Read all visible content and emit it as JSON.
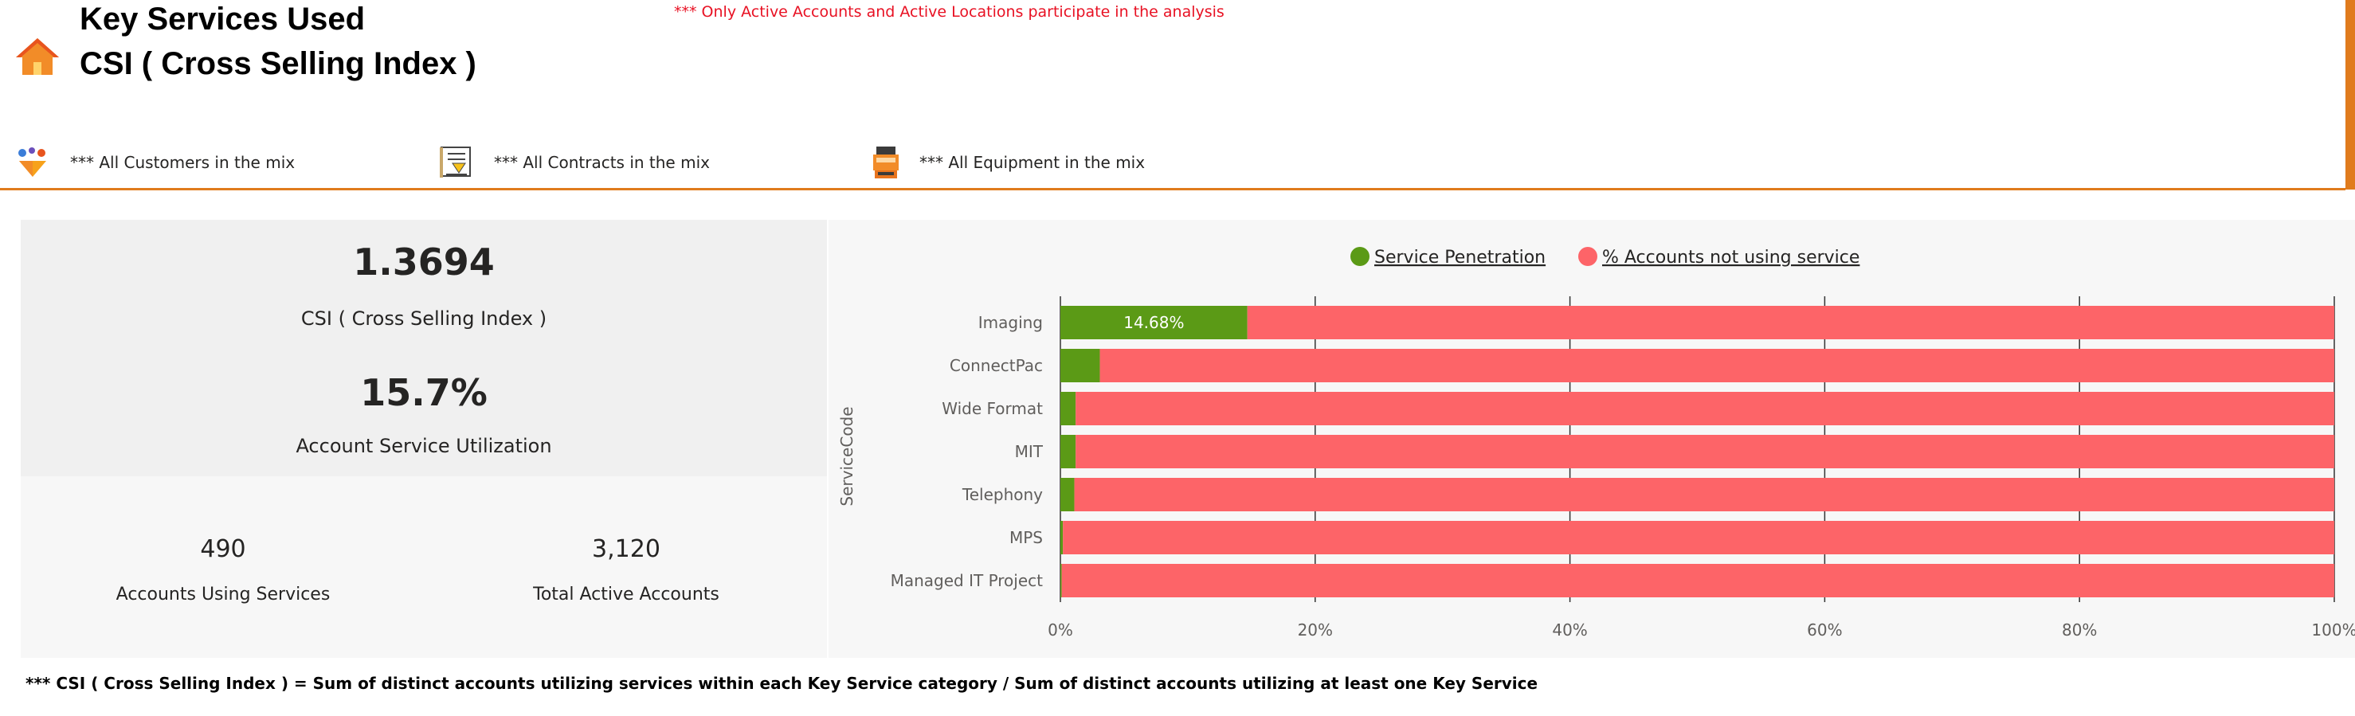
{
  "header": {
    "title_line1": "Key Services Used",
    "title_line2": "CSI ( Cross Selling Index )",
    "note": "*** Only Active Accounts and Active Locations  participate in the analysis",
    "accent_color": "#e07b1d",
    "home_icon": "home-icon"
  },
  "filters": [
    {
      "label": "*** All Customers in the mix",
      "icon": "customers-icon"
    },
    {
      "label": "*** All Contracts in the mix",
      "icon": "contract-icon"
    },
    {
      "label": "*** All Equipment in the mix",
      "icon": "equipment-icon"
    }
  ],
  "kpis": {
    "csi_value": "1.3694",
    "csi_label": "CSI ( Cross Selling Index )",
    "asu_value": "15.7%",
    "asu_label": "Account Service Utilization",
    "accounts_using_value": "490",
    "accounts_using_label": "Accounts Using Services",
    "total_active_value": "3,120",
    "total_active_label": "Total Active Accounts"
  },
  "chart_data": {
    "type": "bar",
    "orientation": "horizontal",
    "stacked": "100%",
    "ylabel": "ServiceCode",
    "categories": [
      "Imaging",
      "ConnectPac",
      "Wide Format",
      "MIT",
      "Telephony",
      "MPS",
      "Managed IT Project"
    ],
    "series": [
      {
        "name": "Service Penetration",
        "color": "#5b9a16",
        "values": [
          14.68,
          3.1,
          1.2,
          1.2,
          1.1,
          0.2,
          0.1
        ]
      },
      {
        "name": "% Accounts not using service",
        "color": "#fd6468",
        "values": [
          85.32,
          96.9,
          98.8,
          98.8,
          98.9,
          99.8,
          99.9
        ]
      }
    ],
    "data_labels": [
      {
        "category": "Imaging",
        "series": "Service Penetration",
        "text": "14.68%"
      }
    ],
    "xticks": [
      "0%",
      "20%",
      "40%",
      "60%",
      "80%",
      "100%"
    ],
    "xlim": [
      0,
      100
    ],
    "legend_position": "top-center",
    "grid": "vertical"
  },
  "footnote": "*** CSI ( Cross Selling Index ) = Sum of distinct accounts utilizing services within each Key Service category / Sum of distinct accounts utilizing at least one Key Service"
}
